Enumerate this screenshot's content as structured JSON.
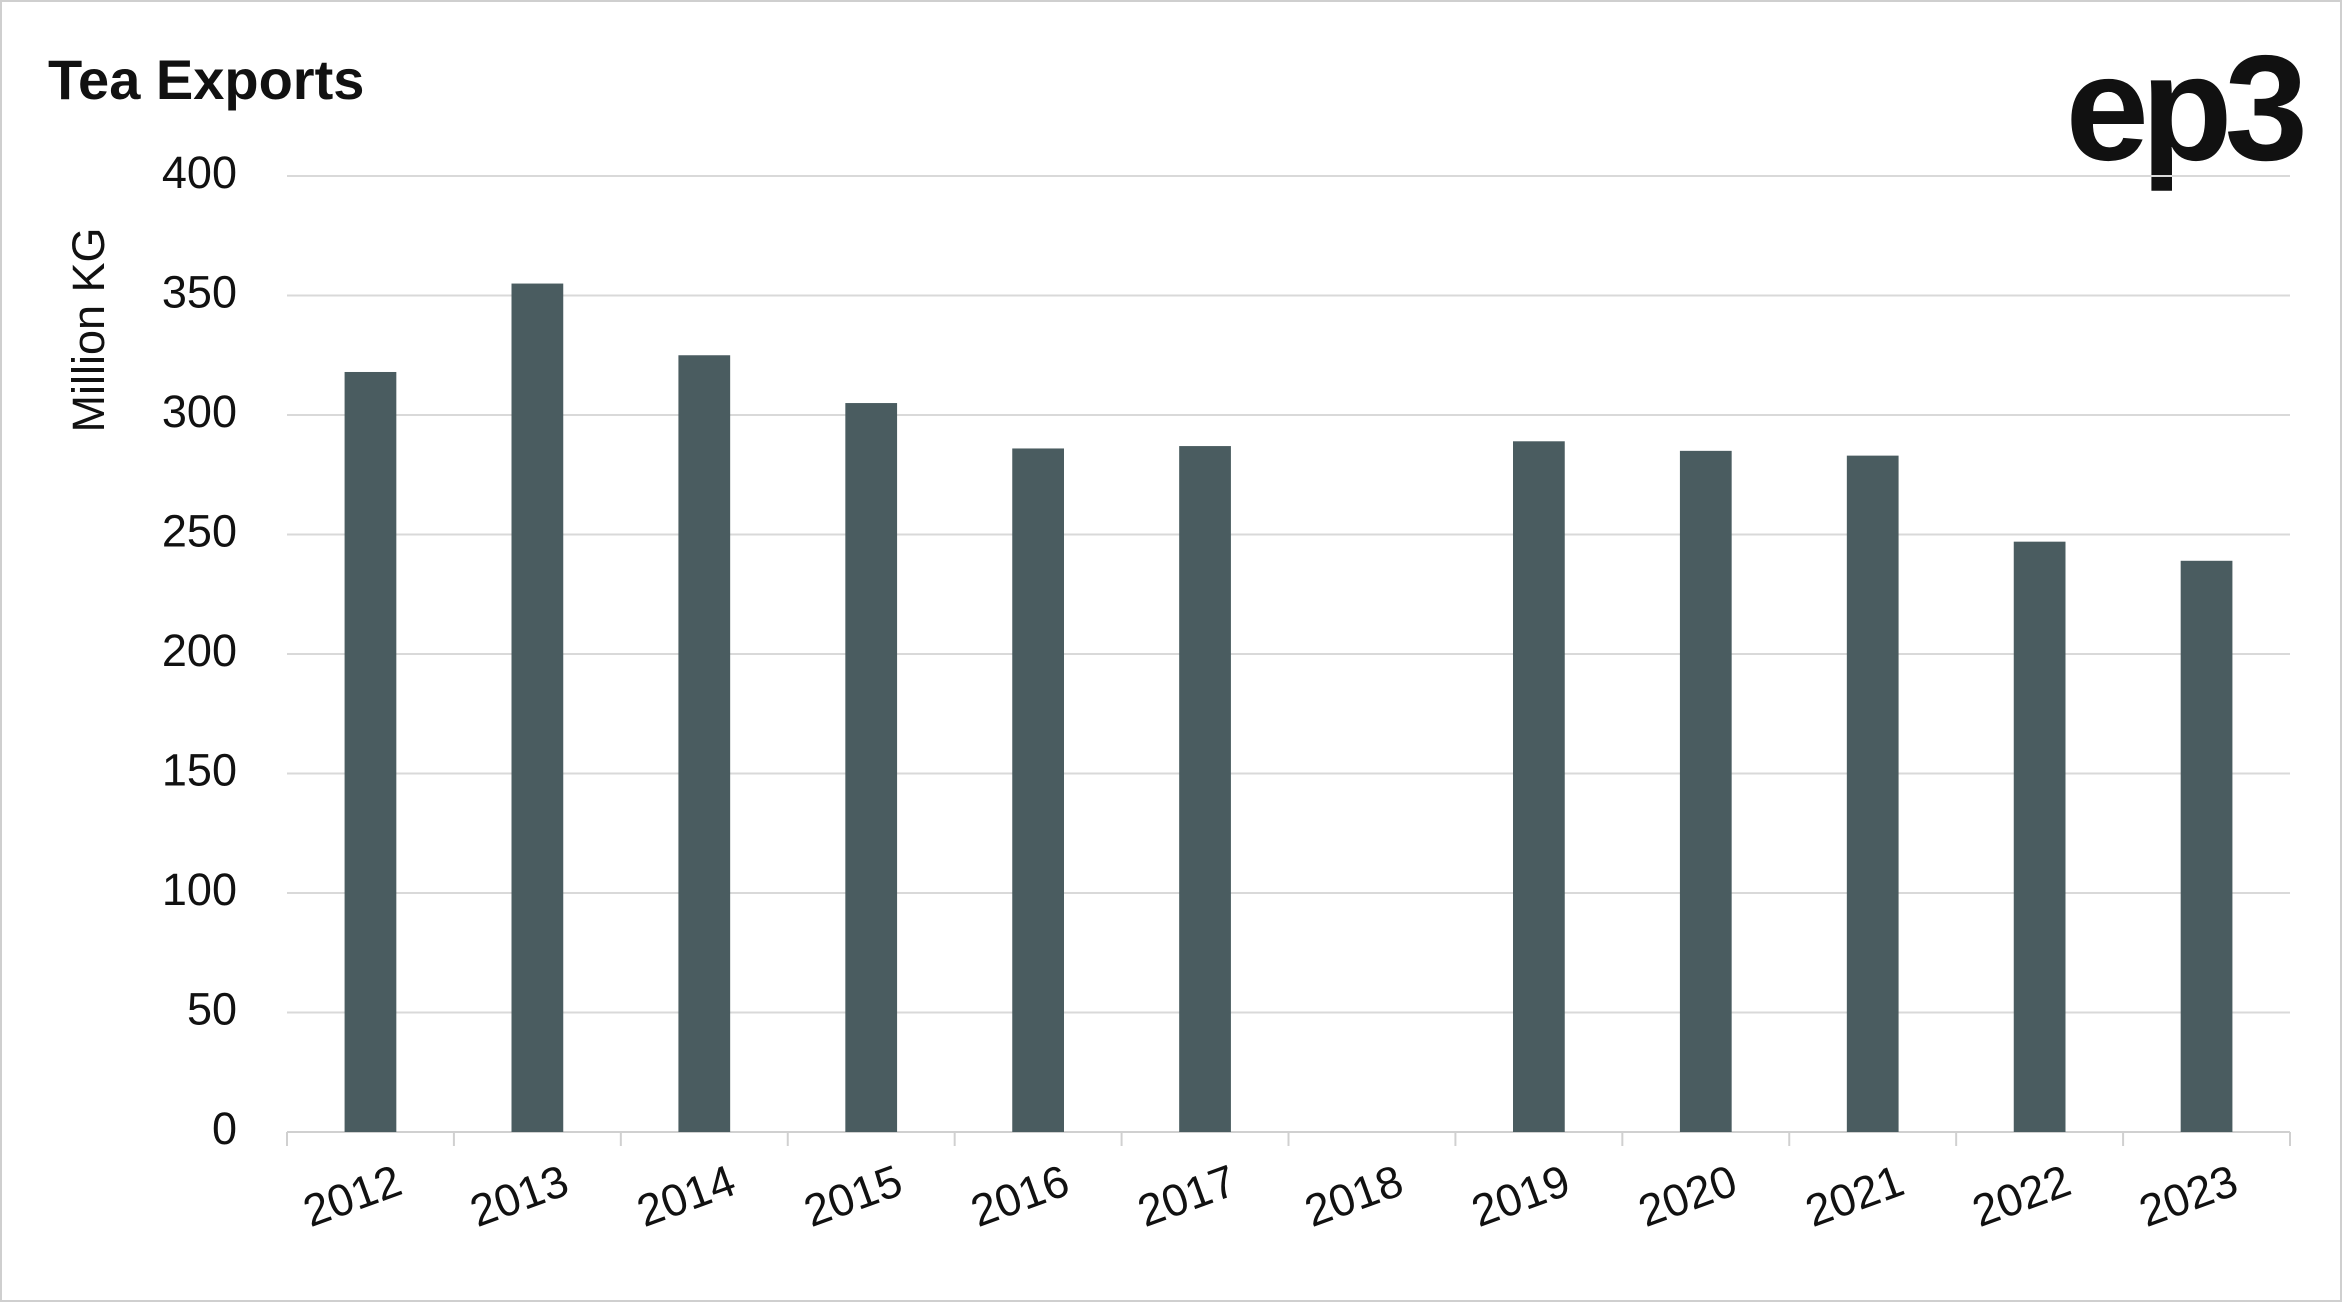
{
  "chart_data": {
    "type": "bar",
    "title": "Tea Exports",
    "logo": "ep3",
    "y_label": "Million KG",
    "categories": [
      "2012",
      "2013",
      "2014",
      "2015",
      "2016",
      "2017",
      "2018",
      "2019",
      "2020",
      "2021",
      "2022",
      "2023"
    ],
    "values": [
      318,
      355,
      325,
      305,
      286,
      287,
      null,
      289,
      285,
      283,
      247,
      239
    ],
    "color": "#4a5c60",
    "ylim": [
      0,
      400
    ],
    "yticks": [
      0,
      50,
      100,
      150,
      200,
      250,
      300,
      350,
      400
    ],
    "grid": true
  }
}
